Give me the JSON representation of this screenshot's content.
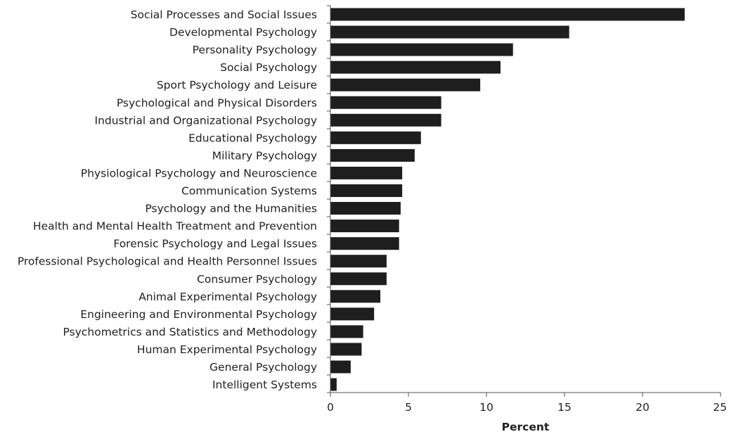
{
  "chart_data": {
    "type": "bar",
    "orientation": "horizontal",
    "categories": [
      "Social Processes and Social Issues",
      "Developmental Psychology",
      "Personality Psychology",
      "Social Psychology",
      "Sport Psychology and Leisure",
      "Psychological and Physical Disorders",
      "Industrial and Organizational Psychology",
      "Educational Psychology",
      "Military Psychology",
      "Physiological Psychology and Neuroscience",
      "Communication Systems",
      "Psychology and the Humanities",
      "Health and Mental Health Treatment and Prevention",
      "Forensic Psychology and Legal Issues",
      "Professional Psychological and Health Personnel Issues",
      "Consumer Psychology",
      "Animal Experimental Psychology",
      "Engineering and Environmental Psychology",
      "Psychometrics and Statistics and Methodology",
      "Human Experimental Psychology",
      "General Psychology",
      "Intelligent Systems"
    ],
    "values": [
      22.7,
      15.3,
      11.7,
      10.9,
      9.6,
      7.1,
      7.1,
      5.8,
      5.4,
      4.6,
      4.6,
      4.5,
      4.4,
      4.4,
      3.6,
      3.6,
      3.2,
      2.8,
      2.1,
      2.0,
      1.3,
      0.4
    ],
    "xlabel": "Percent",
    "xlim": [
      0,
      25
    ],
    "xticks": [
      "0",
      "5",
      "10",
      "15",
      "20",
      "25"
    ],
    "bar_color": "#1e1e1e",
    "grid": false,
    "legend": "none"
  }
}
